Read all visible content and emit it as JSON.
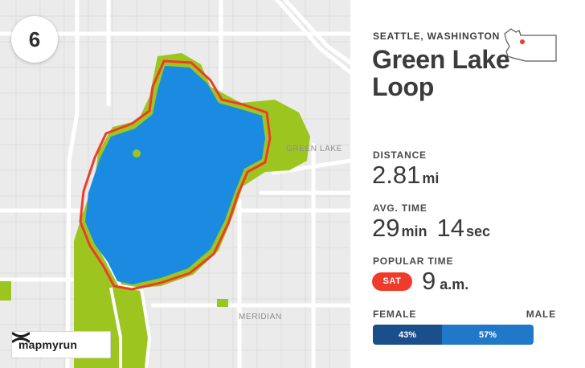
{
  "route": {
    "rank": "6",
    "location": "SEATTLE, WASHINGTON",
    "title": "Green Lake Loop"
  },
  "map": {
    "labels": {
      "green_lake": "GREEN LAKE",
      "meridian": "MERIDIAN"
    },
    "brand": "mapmyrun",
    "colors": {
      "water": "#1a8be0",
      "park": "#9cc61f",
      "route": "#ef3b2c",
      "land": "#ebebeb",
      "road": "#ffffff"
    }
  },
  "stats": {
    "distance": {
      "label": "DISTANCE",
      "value": "2.81",
      "unit": "mi"
    },
    "avg_time": {
      "label": "AVG. TIME",
      "minutes": "29",
      "min_unit": "min",
      "seconds": "14",
      "sec_unit": "sec"
    },
    "popular_time": {
      "label": "POPULAR TIME",
      "day": "SAT",
      "time": "9",
      "time_unit": "a.m."
    },
    "gender": {
      "female_label": "FEMALE",
      "male_label": "MALE",
      "female_pct": "43%",
      "male_pct": "57%",
      "female_fraction": 0.43,
      "colors": {
        "female": "#1b4f8c",
        "male": "#1f78c8"
      }
    }
  },
  "icons": {
    "state": "washington-state-icon",
    "brand": "under-armour-logo-icon"
  }
}
